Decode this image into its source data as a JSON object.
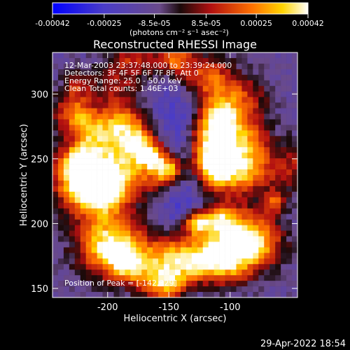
{
  "chart_data": {
    "type": "heatmap",
    "title": "Reconstructed RHESSI Image",
    "xlabel": "Heliocentric X (arcsec)",
    "ylabel": "Heliocentric Y (arcsec)",
    "xlim": [
      -245,
      -45
    ],
    "ylim": [
      143,
      332
    ],
    "x_ticks": [
      -200,
      -150,
      -100
    ],
    "y_ticks": [
      150,
      200,
      250,
      300
    ],
    "colorbar": {
      "range": [
        -0.00042,
        0.00042
      ],
      "tick_values": [
        -0.00042,
        -0.00025,
        -8.5e-05,
        8.5e-05,
        0.00025,
        0.00042
      ],
      "tick_labels": [
        "-0.00042",
        "-0.00025",
        "-8.5e-05",
        "8.5e-05",
        "0.00025",
        "0.00042"
      ],
      "unit_label": "(photons cm⁻² s⁻¹ asec⁻²)",
      "colors": [
        "#0000ff",
        "#5a3fb0",
        "#222222",
        "#b01010",
        "#ff6a00",
        "#ffd000",
        "#ffffff"
      ]
    },
    "annotations": [
      "12-Mar-2003 23:37:48.000 to 23:39:24.000",
      "Detectors: 3F 4F 5F 6F 7F 8F, Att 0",
      "Energy Range: 25.0 - 50.0 keV",
      "Clean    Total counts: 1.46E+03"
    ],
    "peak_label": "Position of Peak = [-142,329]",
    "peak": {
      "x": -142,
      "y": 329
    },
    "grid": false
  },
  "footer": {
    "timestamp": "29-Apr-2022 18:54"
  }
}
